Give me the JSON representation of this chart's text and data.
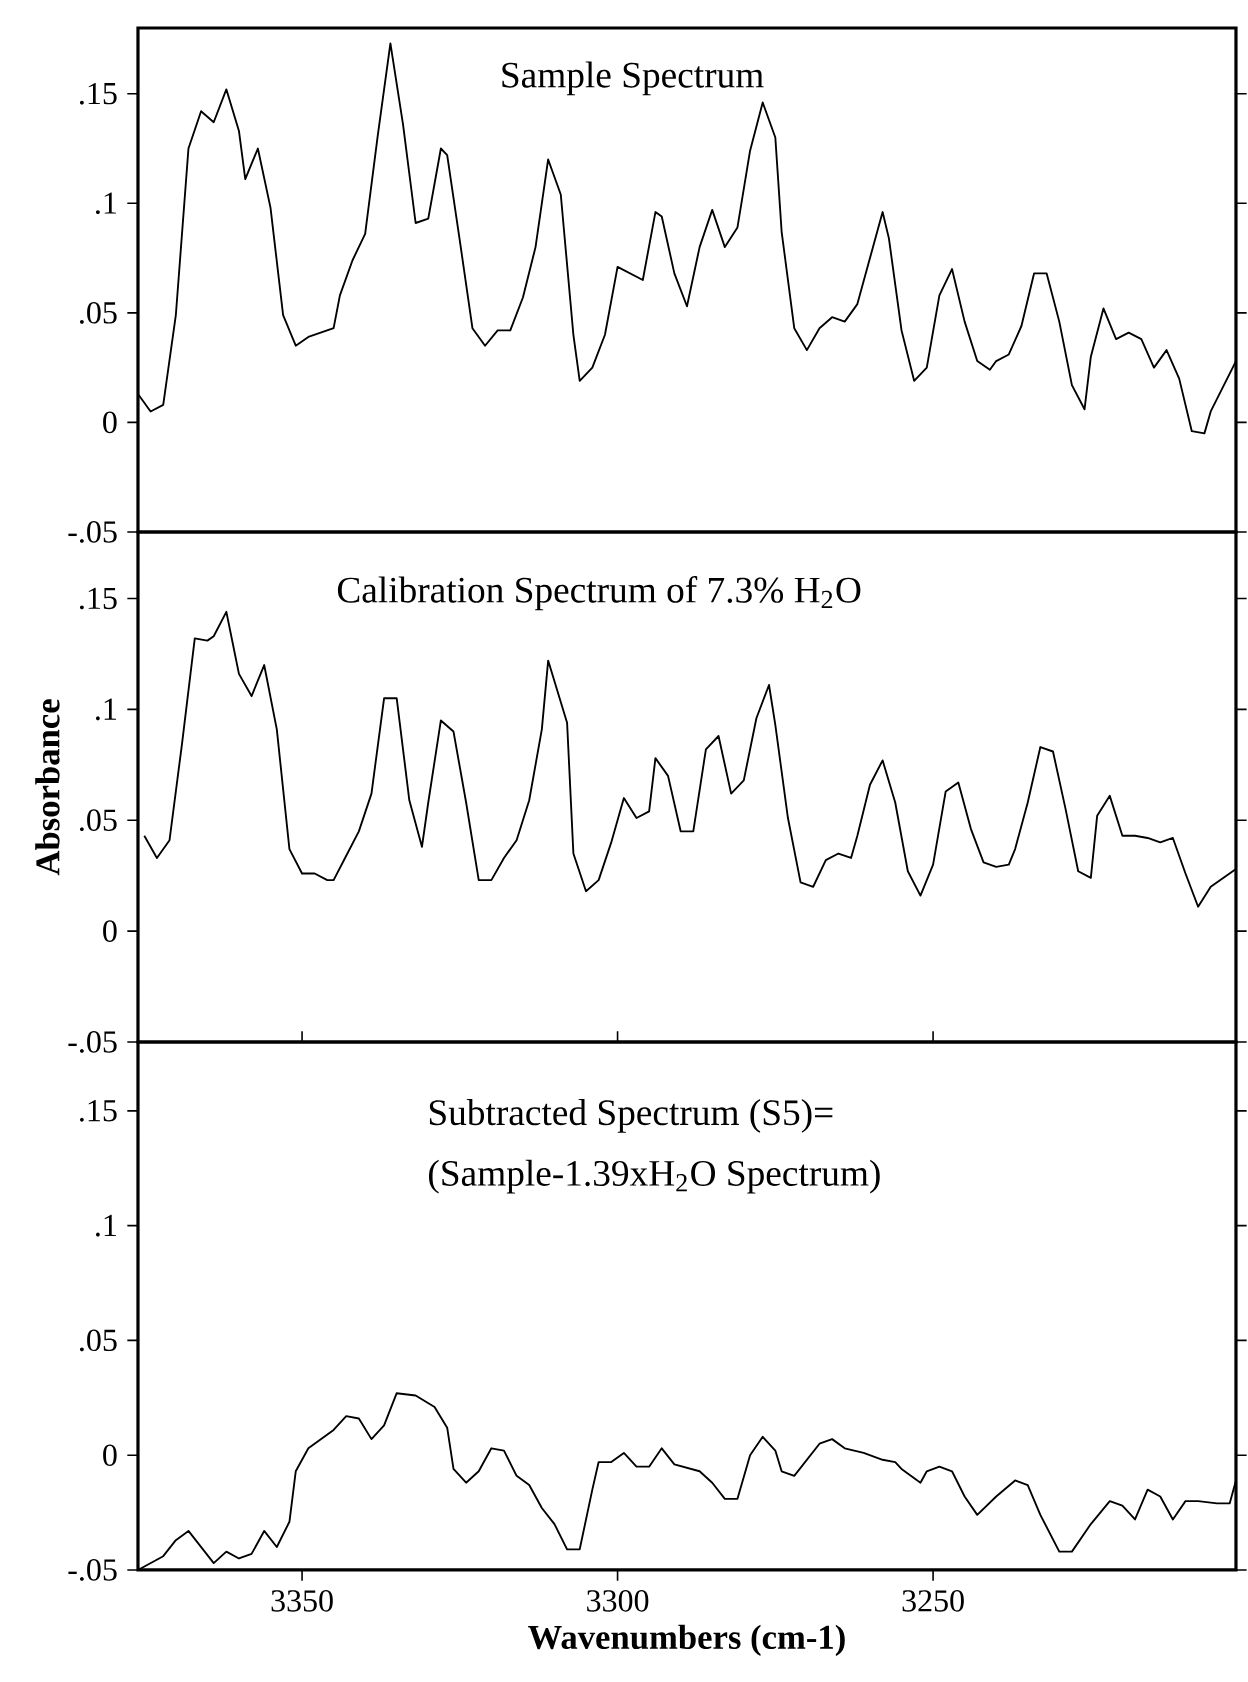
{
  "chart_data": [
    {
      "type": "line",
      "title": "Sample Spectrum",
      "xlim": [
        3376,
        3202
      ],
      "xticks": [
        3350,
        3300,
        3250
      ],
      "ylim": [
        -0.05,
        0.18
      ],
      "yticks": [
        {
          "value": -0.05,
          "label": "-.05"
        },
        {
          "value": 0,
          "label": "0"
        },
        {
          "value": 0.05,
          "label": ".05"
        },
        {
          "value": 0.1,
          "label": ".1"
        },
        {
          "value": 0.15,
          "label": ".15"
        }
      ],
      "tick_labels": "y",
      "series": [
        {
          "color": "#000000",
          "x": [
            3376,
            3374,
            3372,
            3370,
            3368,
            3366,
            3364,
            3362,
            3360,
            3359,
            3357,
            3355,
            3353,
            3351,
            3349,
            3345,
            3344,
            3342,
            3340,
            3338,
            3336,
            3334,
            3332,
            3330,
            3328,
            3327,
            3325,
            3323,
            3321,
            3319,
            3317,
            3315,
            3313,
            3311,
            3309,
            3307,
            3306,
            3304,
            3302,
            3300,
            3296,
            3294,
            3293,
            3291,
            3289,
            3287,
            3285,
            3283,
            3281,
            3279,
            3277,
            3275,
            3274,
            3272,
            3270,
            3268,
            3266,
            3264,
            3262,
            3260,
            3258,
            3257,
            3255,
            3253,
            3251,
            3249,
            3247,
            3245,
            3243,
            3241,
            3240,
            3238,
            3236,
            3234,
            3232,
            3230,
            3228,
            3226,
            3225,
            3223,
            3221,
            3219,
            3217,
            3215,
            3213,
            3211,
            3209,
            3207,
            3206,
            3202
          ],
          "values": [
            0.013,
            0.005,
            0.008,
            0.049,
            0.125,
            0.142,
            0.137,
            0.152,
            0.133,
            0.111,
            0.125,
            0.098,
            0.049,
            0.035,
            0.039,
            0.043,
            0.058,
            0.074,
            0.086,
            0.131,
            0.173,
            0.136,
            0.091,
            0.093,
            0.125,
            0.122,
            0.083,
            0.043,
            0.035,
            0.042,
            0.042,
            0.057,
            0.08,
            0.12,
            0.104,
            0.04,
            0.019,
            0.025,
            0.04,
            0.071,
            0.065,
            0.096,
            0.094,
            0.068,
            0.053,
            0.08,
            0.097,
            0.08,
            0.089,
            0.124,
            0.146,
            0.13,
            0.087,
            0.043,
            0.033,
            0.043,
            0.048,
            0.046,
            0.054,
            0.075,
            0.096,
            0.084,
            0.042,
            0.019,
            0.025,
            0.058,
            0.07,
            0.046,
            0.028,
            0.024,
            0.028,
            0.031,
            0.044,
            0.068,
            0.068,
            0.046,
            0.017,
            0.006,
            0.03,
            0.052,
            0.038,
            0.041,
            0.038,
            0.025,
            0.033,
            0.02,
            -0.004,
            -0.005,
            0.005,
            0.028
          ]
        }
      ]
    },
    {
      "type": "line",
      "title": "Calibration Spectrum of 7.3% H$_{2}$O",
      "ylabel": "Absorbance",
      "xlim": [
        3376,
        3202
      ],
      "xticks": [
        3350,
        3300,
        3250
      ],
      "ylim": [
        -0.05,
        0.18
      ],
      "yticks": [
        {
          "value": -0.05,
          "label": "-.05"
        },
        {
          "value": 0,
          "label": "0"
        },
        {
          "value": 0.05,
          "label": ".05"
        },
        {
          "value": 0.1,
          "label": ".1"
        },
        {
          "value": 0.15,
          "label": ".15"
        }
      ],
      "tick_labels": "y",
      "series": [
        {
          "color": "#000000",
          "x": [
            3375,
            3373,
            3371,
            3369,
            3367,
            3365,
            3364,
            3362,
            3360,
            3358,
            3356,
            3354,
            3352,
            3350,
            3348,
            3346,
            3345,
            3343,
            3341,
            3339,
            3337,
            3335,
            3333,
            3331,
            3330,
            3328,
            3326,
            3324,
            3322,
            3320,
            3318,
            3316,
            3314,
            3312,
            3311,
            3308,
            3307,
            3305,
            3303,
            3301,
            3299,
            3297,
            3295,
            3294,
            3292,
            3290,
            3288,
            3286,
            3284,
            3282,
            3280,
            3278,
            3276,
            3275,
            3273,
            3271,
            3269,
            3267,
            3265,
            3263,
            3262,
            3260,
            3258,
            3256,
            3254,
            3252,
            3250,
            3248,
            3246,
            3244,
            3242,
            3240,
            3238,
            3237,
            3235,
            3233,
            3231,
            3229,
            3227,
            3225,
            3224,
            3222,
            3220,
            3218,
            3216,
            3214,
            3212,
            3210,
            3208,
            3206,
            3202
          ],
          "values": [
            0.043,
            0.033,
            0.041,
            0.085,
            0.132,
            0.131,
            0.133,
            0.144,
            0.116,
            0.106,
            0.12,
            0.091,
            0.037,
            0.026,
            0.026,
            0.023,
            0.023,
            0.034,
            0.045,
            0.062,
            0.105,
            0.105,
            0.059,
            0.038,
            0.058,
            0.095,
            0.09,
            0.058,
            0.023,
            0.023,
            0.033,
            0.041,
            0.059,
            0.091,
            0.122,
            0.094,
            0.035,
            0.018,
            0.023,
            0.04,
            0.06,
            0.051,
            0.054,
            0.078,
            0.07,
            0.045,
            0.045,
            0.082,
            0.088,
            0.062,
            0.068,
            0.096,
            0.111,
            0.093,
            0.051,
            0.022,
            0.02,
            0.032,
            0.035,
            0.033,
            0.043,
            0.066,
            0.077,
            0.058,
            0.027,
            0.016,
            0.03,
            0.063,
            0.067,
            0.046,
            0.031,
            0.029,
            0.03,
            0.037,
            0.058,
            0.083,
            0.081,
            0.055,
            0.027,
            0.024,
            0.052,
            0.061,
            0.043,
            0.043,
            0.042,
            0.04,
            0.042,
            0.026,
            0.011,
            0.02,
            0.028
          ]
        }
      ]
    },
    {
      "type": "line",
      "title": "Subtracted Spectrum (S5)=",
      "subtitle": "(Sample-1.39xH$_{2}$O Spectrum)",
      "xlabel": "Wavenumbers (cm-1)",
      "xlim": [
        3376,
        3202
      ],
      "xticks": [
        3350,
        3300,
        3250
      ],
      "ylim": [
        -0.05,
        0.18
      ],
      "yticks": [
        {
          "value": -0.05,
          "label": "-.05"
        },
        {
          "value": 0,
          "label": "0"
        },
        {
          "value": 0.05,
          "label": ".05"
        },
        {
          "value": 0.1,
          "label": ".1"
        },
        {
          "value": 0.15,
          "label": ".15"
        }
      ],
      "series": [
        {
          "color": "#000000",
          "x": [
            3376,
            3372,
            3370,
            3368,
            3364,
            3362,
            3360,
            3358,
            3356,
            3354,
            3352,
            3351,
            3349,
            3345,
            3343,
            3341,
            3339,
            3337,
            3335,
            3332,
            3329,
            3327,
            3326,
            3324,
            3322,
            3320,
            3318,
            3316,
            3314,
            3312,
            3310,
            3308,
            3306,
            3304,
            3303,
            3301,
            3299,
            3297,
            3295,
            3293,
            3291,
            3287,
            3285,
            3283,
            3281,
            3279,
            3277,
            3275,
            3274,
            3272,
            3270,
            3268,
            3266,
            3264,
            3261,
            3258,
            3256,
            3255,
            3252,
            3251,
            3249,
            3247,
            3245,
            3243,
            3240,
            3237,
            3235,
            3233,
            3230,
            3228,
            3225,
            3222,
            3220,
            3218,
            3216,
            3214,
            3212,
            3210,
            3208,
            3205,
            3203,
            3202
          ],
          "values": [
            -0.05,
            -0.044,
            -0.037,
            -0.033,
            -0.047,
            -0.042,
            -0.045,
            -0.043,
            -0.033,
            -0.04,
            -0.029,
            -0.007,
            0.003,
            0.011,
            0.017,
            0.016,
            0.007,
            0.013,
            0.027,
            0.026,
            0.021,
            0.012,
            -0.006,
            -0.012,
            -0.007,
            0.003,
            0.002,
            -0.009,
            -0.013,
            -0.023,
            -0.03,
            -0.041,
            -0.041,
            -0.015,
            -0.003,
            -0.003,
            0.001,
            -0.005,
            -0.005,
            0.003,
            -0.004,
            -0.007,
            -0.012,
            -0.019,
            -0.019,
            0.0,
            0.008,
            0.002,
            -0.007,
            -0.009,
            -0.002,
            0.005,
            0.007,
            0.003,
            0.001,
            -0.002,
            -0.003,
            -0.006,
            -0.012,
            -0.007,
            -0.005,
            -0.007,
            -0.018,
            -0.026,
            -0.018,
            -0.011,
            -0.013,
            -0.026,
            -0.042,
            -0.042,
            -0.03,
            -0.02,
            -0.022,
            -0.028,
            -0.015,
            -0.018,
            -0.028,
            -0.02,
            -0.02,
            -0.021,
            -0.021,
            -0.011
          ]
        }
      ]
    }
  ]
}
